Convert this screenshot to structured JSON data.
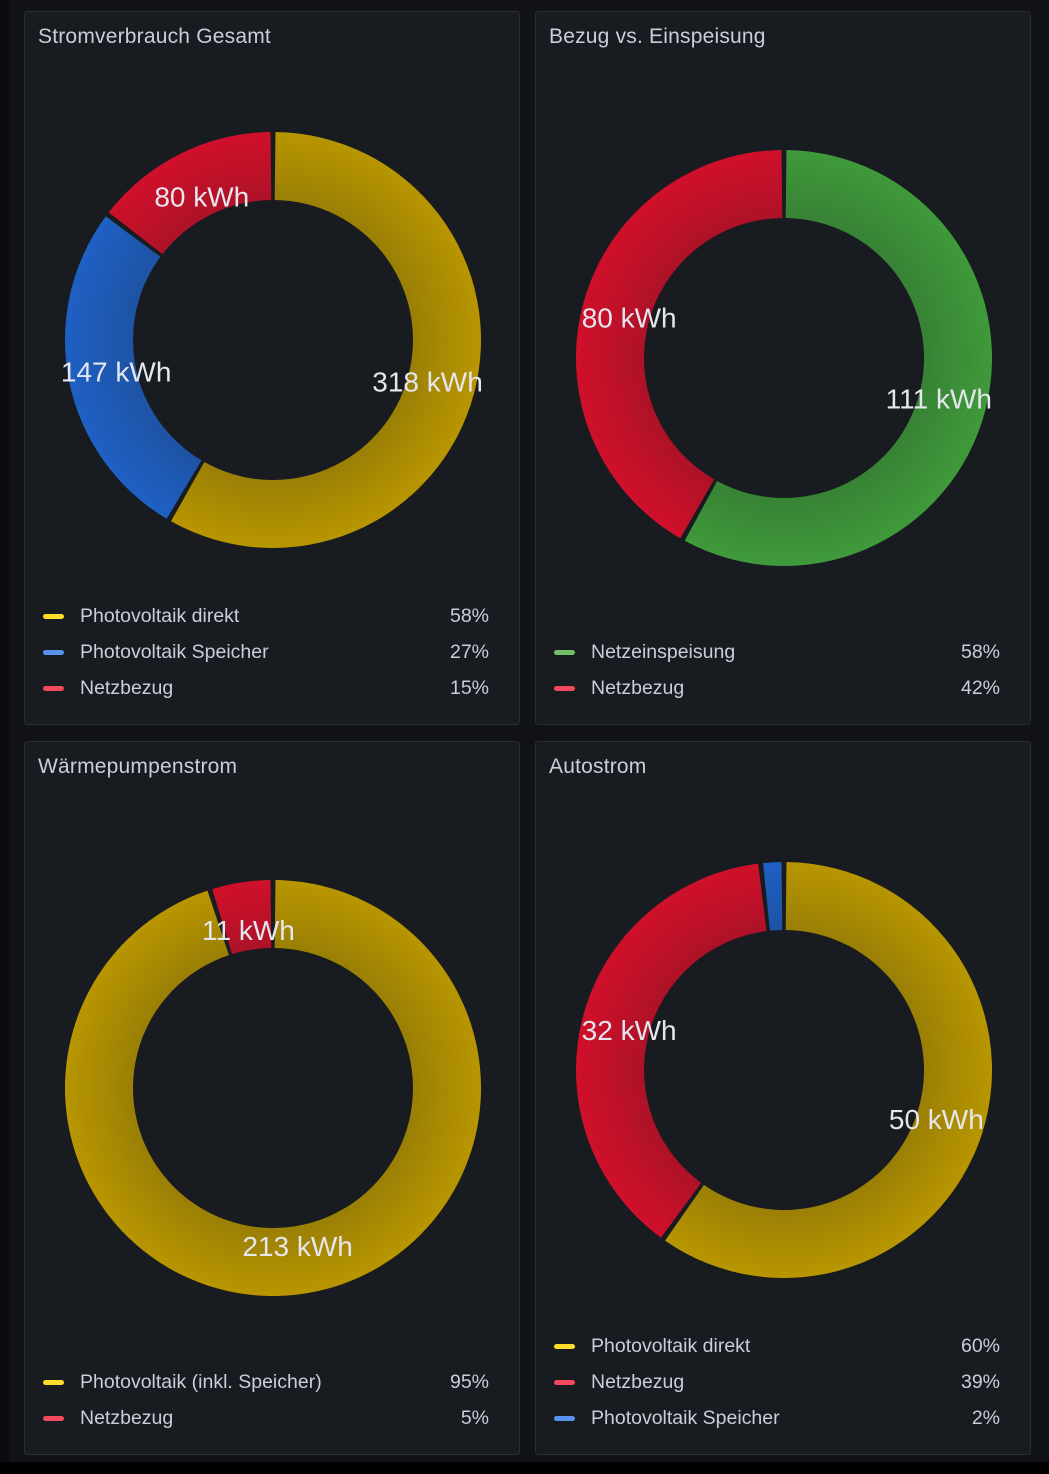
{
  "colors": {
    "yellow": "#b89600",
    "blue": "#1f60c4",
    "red": "#d0102a",
    "green": "#3f9a3a",
    "legend_yellow": "#fade2a",
    "legend_blue": "#5794f2",
    "legend_red": "#f2495c",
    "legend_green": "#73bf69"
  },
  "chart_data": [
    {
      "type": "pie",
      "title": "Stromverbrauch Gesamt",
      "series": [
        {
          "name": "Photovoltaik direkt",
          "value": 318,
          "label": "318 kWh",
          "percent": "58%",
          "color": "yellow"
        },
        {
          "name": "Photovoltaik Speicher",
          "value": 147,
          "label": "147 kWh",
          "percent": "27%",
          "color": "blue"
        },
        {
          "name": "Netzbezug",
          "value": 80,
          "label": "80 kWh",
          "percent": "15%",
          "color": "red"
        }
      ]
    },
    {
      "type": "pie",
      "title": "Bezug vs. Einspeisung",
      "series": [
        {
          "name": "Netzeinspeisung",
          "value": 111,
          "label": "111 kWh",
          "percent": "58%",
          "color": "green"
        },
        {
          "name": "Netzbezug",
          "value": 80,
          "label": "80 kWh",
          "percent": "42%",
          "color": "red"
        }
      ]
    },
    {
      "type": "pie",
      "title": "Wärmepumpenstrom",
      "series": [
        {
          "name": "Photovoltaik (inkl. Speicher)",
          "value": 213,
          "label": "213 kWh",
          "percent": "95%",
          "color": "yellow"
        },
        {
          "name": "Netzbezug",
          "value": 11,
          "label": "11 kWh",
          "percent": "5%",
          "color": "red"
        }
      ]
    },
    {
      "type": "pie",
      "title": "Autostrom",
      "series": [
        {
          "name": "Photovoltaik direkt",
          "value": 50,
          "label": "50 kWh",
          "percent": "60%",
          "color": "yellow"
        },
        {
          "name": "Netzbezug",
          "value": 32,
          "label": "32 kWh",
          "percent": "39%",
          "color": "red"
        },
        {
          "name": "Photovoltaik Speicher",
          "value": 1.5,
          "label": "",
          "percent": "2%",
          "color": "blue"
        }
      ]
    }
  ]
}
